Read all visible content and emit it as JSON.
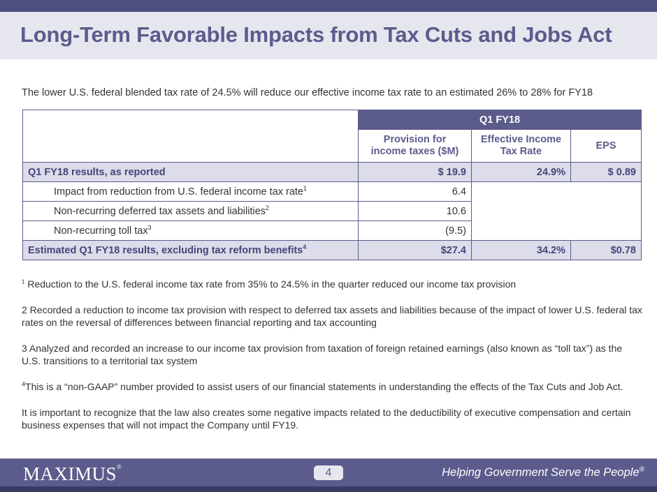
{
  "slide": {
    "title": "Long-Term Favorable Impacts from Tax Cuts and Jobs Act",
    "subtitle": "The lower U.S. federal blended tax rate of 24.5% will reduce our effective income tax rate to an estimated 26% to 28% for FY18"
  },
  "table": {
    "group_header": "Q1 FY18",
    "columns": {
      "provision_line1": "Provision for",
      "provision_line2": "income taxes ($M)",
      "rate_line1": "Effective Income",
      "rate_line2": "Tax Rate",
      "eps": "EPS"
    },
    "rows": [
      {
        "label": "Q1 FY18 results, as reported",
        "sup": "",
        "provision": "$ 19.9",
        "rate": "24.9%",
        "eps": "$ 0.89"
      },
      {
        "label": "Impact from reduction from U.S. federal income tax rate",
        "sup": "1",
        "provision": "6.4"
      },
      {
        "label": "Non-recurring deferred tax assets and liabilities",
        "sup": "2",
        "provision": "10.6"
      },
      {
        "label": "Non-recurring toll tax",
        "sup": "3",
        "provision": "(9.5)"
      },
      {
        "label": "Estimated Q1 FY18 results, excluding tax reform benefits",
        "sup": "4",
        "provision": "$27.4",
        "rate": "34.2%",
        "eps": "$0.78"
      }
    ]
  },
  "footnotes": [
    {
      "mark": "1",
      "text": " Reduction to the U.S. federal income tax rate from 35% to 24.5% in the quarter reduced our income tax provision"
    },
    {
      "mark": "2",
      "text": " Recorded a reduction to income tax provision with respect to deferred tax assets and liabilities because of the impact of lower U.S. federal tax rates on the reversal of differences between financial reporting and tax accounting"
    },
    {
      "mark": "3",
      "text": " Analyzed and recorded an increase to our income tax provision from taxation of foreign retained earnings (also known as “toll tax”) as the U.S. transitions to a territorial tax system"
    },
    {
      "mark": "4",
      "text": "This is a “non-GAAP” number provided to assist users of our financial statements in understanding the effects of the Tax Cuts and Job Act."
    },
    {
      "mark": "",
      "text": "It is important to recognize that the law also creates some negative impacts related to the deductibility of executive compensation and certain business expenses that will not impact the Company until FY19."
    }
  ],
  "footer": {
    "logo_text": "MAXIMUS",
    "logo_reg": "®",
    "page_number": "4",
    "tagline": "Helping Government Serve the People",
    "tagline_reg": "®"
  },
  "colors": {
    "brand_purple": "#5b5b8c",
    "band_light": "#e6e6ef",
    "row_highlight": "#dcdcea"
  }
}
